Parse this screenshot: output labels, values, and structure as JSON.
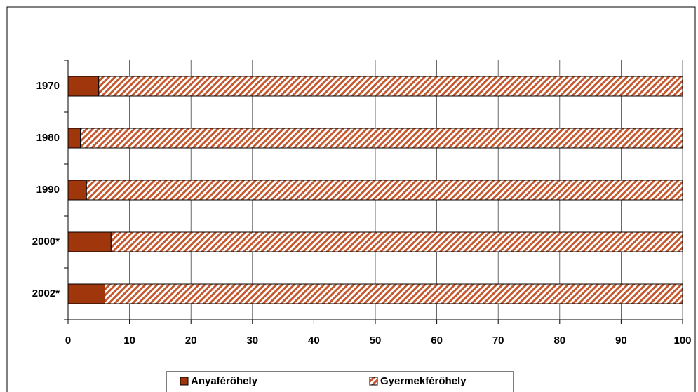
{
  "chart_data": {
    "type": "bar",
    "orientation": "horizontal",
    "stacked": true,
    "categories": [
      "1970",
      "1980",
      "1990",
      "2000*",
      "2002*"
    ],
    "series": [
      {
        "name": "Anyaférőhely",
        "color": "#a0360c",
        "values": [
          5,
          2,
          3,
          7,
          6
        ]
      },
      {
        "name": "Gyermekférőhely",
        "color": "#c4582e",
        "hatch": true,
        "values": [
          95,
          98,
          97,
          93,
          94
        ]
      }
    ],
    "xlim": [
      0,
      100
    ],
    "xticks": [
      0,
      10,
      20,
      30,
      40,
      50,
      60,
      70,
      80,
      90,
      100
    ],
    "grid": true,
    "legend": "bottom"
  }
}
